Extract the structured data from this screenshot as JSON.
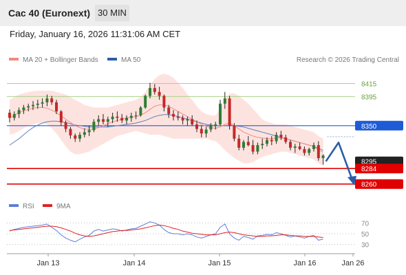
{
  "header": {
    "title": "Cac 40 (Euronext)",
    "timeframe": "30 MIN"
  },
  "subheader": {
    "datetime": "Friday, January 16, 2026 11:31:06 AM CET"
  },
  "legend": {
    "ma20": "MA 20 + Bollinger Bands",
    "ma50": "MA 50",
    "copyright": "Research © 2026 Trading Central",
    "rsi": "RSI",
    "ma9": "9MA"
  },
  "colors": {
    "candle_up": "#2e7d32",
    "candle_down": "#c62828",
    "band_fill": "#fde3df",
    "ma20": "#f28a80",
    "ma50": "#5b7fc0",
    "resistance": "#6aa13a",
    "pivot": "#1e5bd6",
    "support": "#e00000",
    "last": "#222222",
    "arrow": "#2b5ca8",
    "rsi": "#5b7fd6",
    "rsi_ma": "#e02020"
  },
  "chart_data": [
    {
      "type": "candlestick",
      "x_labels": [
        "Jan 13",
        "Jan 14",
        "Jan 15",
        "Jan 16",
        "Jan 26"
      ],
      "ylim": [
        8247,
        8442
      ],
      "levels": [
        {
          "value": 8415,
          "label": "8415",
          "kind": "resistance"
        },
        {
          "value": 8395,
          "label": "8395",
          "kind": "resistance"
        },
        {
          "value": 8350,
          "label": "8350",
          "kind": "pivot"
        },
        {
          "value": 8295,
          "label": "8295",
          "kind": "last"
        },
        {
          "value": 8284,
          "label": "8284",
          "kind": "support"
        },
        {
          "value": 8260,
          "label": "8260",
          "kind": "support"
        }
      ],
      "candles": [
        [
          8370,
          8375,
          8355,
          8362
        ],
        [
          8362,
          8372,
          8358,
          8368
        ],
        [
          8368,
          8378,
          8362,
          8374
        ],
        [
          8374,
          8382,
          8368,
          8378
        ],
        [
          8378,
          8384,
          8372,
          8380
        ],
        [
          8380,
          8388,
          8374,
          8382
        ],
        [
          8382,
          8390,
          8376,
          8384
        ],
        [
          8384,
          8392,
          8378,
          8386
        ],
        [
          8386,
          8398,
          8380,
          8392
        ],
        [
          8392,
          8396,
          8382,
          8386
        ],
        [
          8386,
          8390,
          8368,
          8372
        ],
        [
          8372,
          8374,
          8350,
          8355
        ],
        [
          8355,
          8358,
          8340,
          8345
        ],
        [
          8345,
          8348,
          8330,
          8335
        ],
        [
          8335,
          8338,
          8325,
          8330
        ],
        [
          8330,
          8340,
          8325,
          8336
        ],
        [
          8336,
          8346,
          8332,
          8340
        ],
        [
          8340,
          8350,
          8334,
          8343
        ],
        [
          8343,
          8360,
          8340,
          8356
        ],
        [
          8356,
          8366,
          8350,
          8360
        ],
        [
          8360,
          8368,
          8352,
          8356
        ],
        [
          8356,
          8364,
          8348,
          8360
        ],
        [
          8360,
          8370,
          8354,
          8364
        ],
        [
          8364,
          8372,
          8356,
          8362
        ],
        [
          8362,
          8368,
          8354,
          8358
        ],
        [
          8358,
          8366,
          8352,
          8362
        ],
        [
          8362,
          8370,
          8356,
          8365
        ],
        [
          8365,
          8372,
          8360,
          8366
        ],
        [
          8366,
          8380,
          8364,
          8378
        ],
        [
          8378,
          8398,
          8376,
          8396
        ],
        [
          8396,
          8416,
          8392,
          8408
        ],
        [
          8408,
          8414,
          8398,
          8402
        ],
        [
          8402,
          8410,
          8390,
          8396
        ],
        [
          8396,
          8398,
          8372,
          8378
        ],
        [
          8378,
          8382,
          8362,
          8368
        ],
        [
          8368,
          8374,
          8358,
          8364
        ],
        [
          8364,
          8372,
          8358,
          8362
        ],
        [
          8362,
          8366,
          8352,
          8358
        ],
        [
          8358,
          8364,
          8350,
          8360
        ],
        [
          8360,
          8366,
          8350,
          8352
        ],
        [
          8352,
          8358,
          8340,
          8345
        ],
        [
          8345,
          8350,
          8332,
          8338
        ],
        [
          8338,
          8348,
          8332,
          8344
        ],
        [
          8344,
          8354,
          8340,
          8350
        ],
        [
          8350,
          8356,
          8344,
          8352
        ],
        [
          8352,
          8390,
          8350,
          8384
        ],
        [
          8384,
          8402,
          8376,
          8392
        ],
        [
          8392,
          8396,
          8344,
          8350
        ],
        [
          8350,
          8354,
          8326,
          8330
        ],
        [
          8330,
          8336,
          8312,
          8316
        ],
        [
          8316,
          8328,
          8312,
          8325
        ],
        [
          8325,
          8334,
          8318,
          8320
        ],
        [
          8320,
          8328,
          8306,
          8310
        ],
        [
          8310,
          8324,
          8306,
          8320
        ],
        [
          8320,
          8330,
          8314,
          8322
        ],
        [
          8322,
          8332,
          8318,
          8328
        ],
        [
          8328,
          8334,
          8320,
          8326
        ],
        [
          8326,
          8340,
          8322,
          8336
        ],
        [
          8336,
          8342,
          8328,
          8332
        ],
        [
          8332,
          8336,
          8322,
          8325
        ],
        [
          8325,
          8328,
          8312,
          8316
        ],
        [
          8316,
          8322,
          8308,
          8318
        ],
        [
          8318,
          8324,
          8312,
          8314
        ],
        [
          8314,
          8318,
          8304,
          8308
        ],
        [
          8308,
          8316,
          8304,
          8314
        ],
        [
          8314,
          8324,
          8310,
          8320
        ],
        [
          8320,
          8326,
          8296,
          8300
        ],
        [
          8300,
          8306,
          8290,
          8304
        ]
      ],
      "ma20": [
        8362,
        8366,
        8370,
        8373,
        8375,
        8377,
        8378,
        8378,
        8377,
        8374,
        8370,
        8365,
        8360,
        8355,
        8350,
        8347,
        8345,
        8344,
        8345,
        8347,
        8350,
        8353,
        8356,
        8358,
        8360,
        8362,
        8363,
        8364,
        8366,
        8370,
        8375,
        8380,
        8382,
        8382,
        8380,
        8376,
        8372,
        8368,
        8364,
        8360,
        8356,
        8352,
        8349,
        8347,
        8346,
        8348,
        8352,
        8354,
        8350,
        8345,
        8340,
        8337,
        8334,
        8332,
        8331,
        8330,
        8330,
        8331,
        8331,
        8330,
        8328,
        8326,
        8324,
        8322,
        8320,
        8318,
        8313,
        8309
      ],
      "band_upper": [
        8390,
        8394,
        8398,
        8400,
        8402,
        8403,
        8404,
        8404,
        8404,
        8404,
        8402,
        8400,
        8398,
        8394,
        8390,
        8386,
        8382,
        8380,
        8378,
        8378,
        8378,
        8378,
        8380,
        8382,
        8384,
        8386,
        8388,
        8390,
        8394,
        8402,
        8412,
        8422,
        8428,
        8430,
        8428,
        8424,
        8416,
        8408,
        8398,
        8390,
        8380,
        8372,
        8368,
        8366,
        8366,
        8376,
        8390,
        8400,
        8400,
        8396,
        8390,
        8384,
        8376,
        8368,
        8360,
        8356,
        8354,
        8352,
        8352,
        8352,
        8350,
        8348,
        8346,
        8344,
        8342,
        8340,
        8334,
        8330
      ],
      "band_lower": [
        8336,
        8338,
        8342,
        8346,
        8350,
        8352,
        8354,
        8354,
        8352,
        8346,
        8338,
        8328,
        8318,
        8310,
        8306,
        8306,
        8308,
        8310,
        8314,
        8318,
        8322,
        8326,
        8330,
        8334,
        8336,
        8338,
        8340,
        8342,
        8340,
        8338,
        8336,
        8336,
        8336,
        8334,
        8332,
        8330,
        8330,
        8330,
        8330,
        8330,
        8330,
        8330,
        8330,
        8328,
        8326,
        8320,
        8312,
        8306,
        8300,
        8296,
        8292,
        8292,
        8294,
        8298,
        8302,
        8304,
        8306,
        8308,
        8310,
        8310,
        8308,
        8306,
        8304,
        8302,
        8300,
        8298,
        8292,
        8288
      ],
      "ma50": [
        8320,
        8325,
        8330,
        8336,
        8342,
        8347,
        8351,
        8354,
        8356,
        8357,
        8357,
        8356,
        8355,
        8353,
        8351,
        8350,
        8349,
        8348,
        8348,
        8348,
        8348,
        8348,
        8349,
        8350,
        8351,
        8352,
        8353,
        8354,
        8356,
        8358,
        8361,
        8364,
        8366,
        8367,
        8367,
        8366,
        8364,
        8362,
        8360,
        8358,
        8356,
        8354,
        8352,
        8351,
        8350,
        8350,
        8350,
        8351,
        8350,
        8349,
        8348,
        8346,
        8344,
        8342,
        8340,
        8338,
        8336,
        8334,
        8332,
        8330,
        8328,
        8326,
        8324,
        8322,
        8320,
        8318,
        8315,
        8312
      ],
      "projection": [
        8295,
        8324,
        8260
      ]
    },
    {
      "type": "line",
      "name": "RSI",
      "ylim": [
        22,
        78
      ],
      "ticks": [
        70,
        50,
        30
      ],
      "rsi": [
        55,
        58,
        60,
        62,
        63,
        64,
        65,
        66,
        68,
        62,
        56,
        48,
        42,
        38,
        35,
        40,
        44,
        47,
        55,
        58,
        55,
        57,
        59,
        58,
        55,
        57,
        59,
        60,
        64,
        68,
        72,
        70,
        66,
        58,
        52,
        50,
        50,
        48,
        50,
        48,
        44,
        42,
        45,
        48,
        50,
        62,
        68,
        50,
        42,
        38,
        45,
        43,
        40,
        46,
        47,
        49,
        48,
        52,
        50,
        47,
        44,
        46,
        44,
        42,
        45,
        47,
        38,
        40
      ],
      "rsi_ma": [
        56,
        57,
        58,
        59,
        60,
        61,
        62,
        63,
        64,
        64,
        63,
        61,
        58,
        55,
        51,
        48,
        46,
        45,
        46,
        48,
        50,
        52,
        54,
        55,
        56,
        56,
        57,
        58,
        59,
        61,
        63,
        65,
        66,
        65,
        63,
        60,
        58,
        55,
        53,
        51,
        50,
        49,
        48,
        48,
        48,
        50,
        52,
        53,
        52,
        50,
        48,
        47,
        46,
        45,
        45,
        46,
        46,
        47,
        48,
        48,
        47,
        46,
        46,
        45,
        45,
        45,
        44,
        43
      ]
    }
  ]
}
